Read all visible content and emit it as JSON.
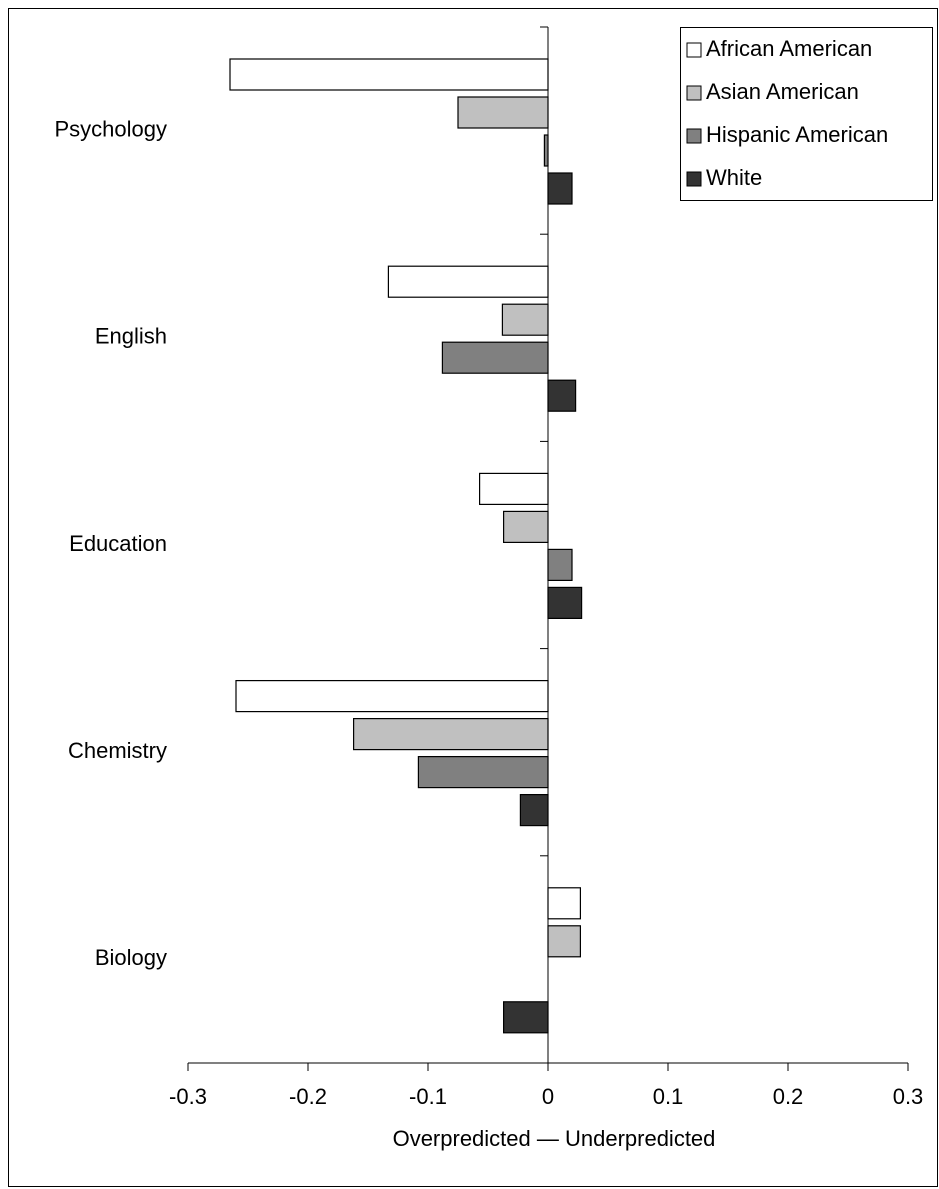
{
  "chart_data": {
    "type": "hbar",
    "xlabel": "Overpredicted — Underpredicted",
    "categories": [
      "Psychology",
      "English",
      "Education",
      "Chemistry",
      "Biology"
    ],
    "series": [
      {
        "name": "African American",
        "color": "#ffffff",
        "values": [
          -0.265,
          -0.133,
          -0.057,
          -0.26,
          0.027
        ]
      },
      {
        "name": "Asian American",
        "color": "#c0c0c0",
        "values": [
          -0.075,
          -0.038,
          -0.037,
          -0.162,
          0.027
        ]
      },
      {
        "name": "Hispanic American",
        "color": "#808080",
        "values": [
          -0.003,
          -0.088,
          0.02,
          -0.108,
          null
        ]
      },
      {
        "name": "White",
        "color": "#333333",
        "values": [
          0.02,
          0.023,
          0.028,
          -0.023,
          -0.037
        ]
      }
    ],
    "xlim": [
      -0.3,
      0.3
    ],
    "xticks": [
      -0.3,
      -0.2,
      -0.1,
      0,
      0.1,
      0.2,
      0.3
    ],
    "legend": "upper right"
  }
}
